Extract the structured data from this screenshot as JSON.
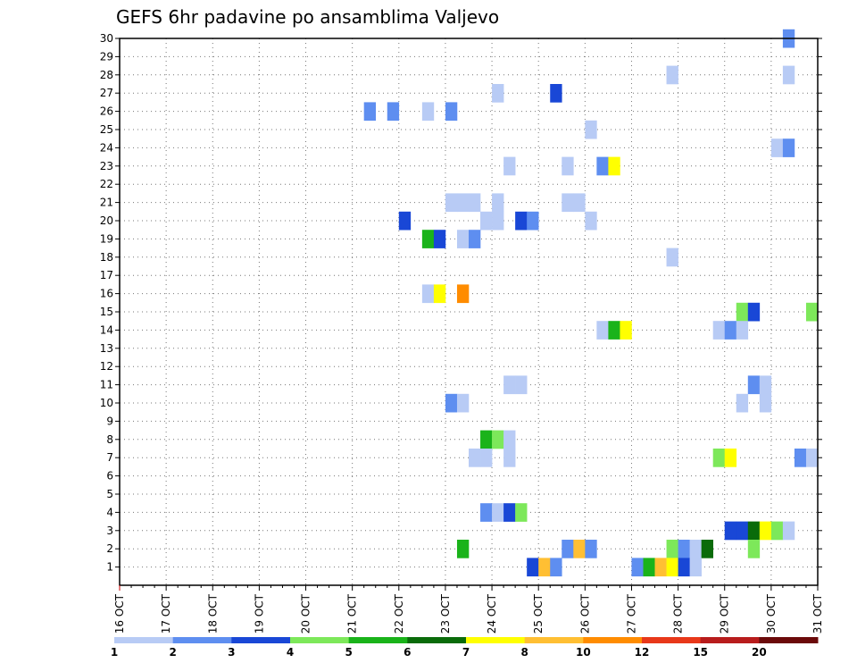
{
  "chart_data": {
    "type": "heatmap",
    "title": "GEFS 6hr padavine po ansamblima Valjevo",
    "xlabel": "",
    "ylabel": "",
    "x_ticks": [
      "16 OCT",
      "17 OCT",
      "18 OCT",
      "19 OCT",
      "20 OCT",
      "21 OCT",
      "22 OCT",
      "23 OCT",
      "24 OCT",
      "25 OCT",
      "26 OCT",
      "27 OCT",
      "28 OCT",
      "29 OCT",
      "30 OCT",
      "31 OCT"
    ],
    "x_range": [
      0,
      60
    ],
    "x_unit": "6-hour steps from 16 OCT 00Z",
    "y_range": [
      0,
      30
    ],
    "y_ticks": [
      1,
      2,
      3,
      4,
      5,
      6,
      7,
      8,
      9,
      10,
      11,
      12,
      13,
      14,
      15,
      16,
      17,
      18,
      19,
      20,
      21,
      22,
      23,
      24,
      25,
      26,
      27,
      28,
      29,
      30
    ],
    "grid": true,
    "legend": {
      "placement": "bottom",
      "labels": [
        "1",
        "2",
        "3",
        "4",
        "5",
        "6",
        "7",
        "8",
        "10",
        "12",
        "15",
        "20"
      ],
      "colors": [
        "#b8cbf5",
        "#5e8ef0",
        "#1947d6",
        "#7de85a",
        "#1ab31a",
        "#0a6b0a",
        "#ffff00",
        "#ffbf33",
        "#ff8c00",
        "#e8381a",
        "#b81c1c",
        "#6b0a0a"
      ]
    },
    "cells": [
      {
        "x": 57,
        "y": 30,
        "c": 2
      },
      {
        "x": 47,
        "y": 28,
        "c": 1
      },
      {
        "x": 57,
        "y": 28,
        "c": 1
      },
      {
        "x": 32,
        "y": 27,
        "c": 1
      },
      {
        "x": 37,
        "y": 27,
        "c": 3
      },
      {
        "x": 21,
        "y": 26,
        "c": 2
      },
      {
        "x": 23,
        "y": 26,
        "c": 2
      },
      {
        "x": 26,
        "y": 26,
        "c": 1
      },
      {
        "x": 28,
        "y": 26,
        "c": 2
      },
      {
        "x": 40,
        "y": 25,
        "c": 1
      },
      {
        "x": 56,
        "y": 24,
        "c": 1
      },
      {
        "x": 57,
        "y": 24,
        "c": 2
      },
      {
        "x": 33,
        "y": 23,
        "c": 1
      },
      {
        "x": 38,
        "y": 23,
        "c": 1
      },
      {
        "x": 41,
        "y": 23,
        "c": 2
      },
      {
        "x": 42,
        "y": 23,
        "c": 7
      },
      {
        "x": 28,
        "y": 21,
        "c": 1
      },
      {
        "x": 29,
        "y": 21,
        "c": 1
      },
      {
        "x": 30,
        "y": 21,
        "c": 1
      },
      {
        "x": 32,
        "y": 21,
        "c": 1
      },
      {
        "x": 38,
        "y": 21,
        "c": 1
      },
      {
        "x": 39,
        "y": 21,
        "c": 1
      },
      {
        "x": 24,
        "y": 20,
        "c": 3
      },
      {
        "x": 31,
        "y": 20,
        "c": 1
      },
      {
        "x": 32,
        "y": 20,
        "c": 1
      },
      {
        "x": 34,
        "y": 20,
        "c": 3
      },
      {
        "x": 35,
        "y": 20,
        "c": 2
      },
      {
        "x": 40,
        "y": 20,
        "c": 1
      },
      {
        "x": 26,
        "y": 19,
        "c": 5
      },
      {
        "x": 27,
        "y": 19,
        "c": 3
      },
      {
        "x": 29,
        "y": 19,
        "c": 1
      },
      {
        "x": 30,
        "y": 19,
        "c": 2
      },
      {
        "x": 47,
        "y": 18,
        "c": 1
      },
      {
        "x": 26,
        "y": 16,
        "c": 1
      },
      {
        "x": 27,
        "y": 16,
        "c": 7
      },
      {
        "x": 29,
        "y": 16,
        "c": 9
      },
      {
        "x": 53,
        "y": 15,
        "c": 4
      },
      {
        "x": 54,
        "y": 15,
        "c": 3
      },
      {
        "x": 59,
        "y": 15,
        "c": 4
      },
      {
        "x": 41,
        "y": 14,
        "c": 1
      },
      {
        "x": 42,
        "y": 14,
        "c": 5
      },
      {
        "x": 43,
        "y": 14,
        "c": 7
      },
      {
        "x": 51,
        "y": 14,
        "c": 1
      },
      {
        "x": 52,
        "y": 14,
        "c": 2
      },
      {
        "x": 53,
        "y": 14,
        "c": 1
      },
      {
        "x": 33,
        "y": 11,
        "c": 1
      },
      {
        "x": 34,
        "y": 11,
        "c": 1
      },
      {
        "x": 54,
        "y": 11,
        "c": 2
      },
      {
        "x": 55,
        "y": 11,
        "c": 1
      },
      {
        "x": 28,
        "y": 10,
        "c": 2
      },
      {
        "x": 29,
        "y": 10,
        "c": 1
      },
      {
        "x": 53,
        "y": 10,
        "c": 1
      },
      {
        "x": 55,
        "y": 10,
        "c": 1
      },
      {
        "x": 31,
        "y": 8,
        "c": 5
      },
      {
        "x": 32,
        "y": 8,
        "c": 4
      },
      {
        "x": 33,
        "y": 8,
        "c": 1
      },
      {
        "x": 30,
        "y": 7,
        "c": 1
      },
      {
        "x": 31,
        "y": 7,
        "c": 1
      },
      {
        "x": 33,
        "y": 7,
        "c": 1
      },
      {
        "x": 51,
        "y": 7,
        "c": 4
      },
      {
        "x": 52,
        "y": 7,
        "c": 7
      },
      {
        "x": 58,
        "y": 7,
        "c": 2
      },
      {
        "x": 59,
        "y": 7,
        "c": 1
      },
      {
        "x": 31,
        "y": 4,
        "c": 2
      },
      {
        "x": 32,
        "y": 4,
        "c": 1
      },
      {
        "x": 33,
        "y": 4,
        "c": 3
      },
      {
        "x": 34,
        "y": 4,
        "c": 4
      },
      {
        "x": 52,
        "y": 3,
        "c": 3
      },
      {
        "x": 53,
        "y": 3,
        "c": 3
      },
      {
        "x": 54,
        "y": 3,
        "c": 6
      },
      {
        "x": 55,
        "y": 3,
        "c": 7
      },
      {
        "x": 56,
        "y": 3,
        "c": 4
      },
      {
        "x": 57,
        "y": 3,
        "c": 1
      },
      {
        "x": 29,
        "y": 2,
        "c": 5
      },
      {
        "x": 38,
        "y": 2,
        "c": 2
      },
      {
        "x": 39,
        "y": 2,
        "c": 8
      },
      {
        "x": 40,
        "y": 2,
        "c": 2
      },
      {
        "x": 47,
        "y": 2,
        "c": 4
      },
      {
        "x": 48,
        "y": 2,
        "c": 2
      },
      {
        "x": 49,
        "y": 2,
        "c": 1
      },
      {
        "x": 50,
        "y": 2,
        "c": 6
      },
      {
        "x": 54,
        "y": 2,
        "c": 4
      },
      {
        "x": 35,
        "y": 1,
        "c": 3
      },
      {
        "x": 36,
        "y": 1,
        "c": 8
      },
      {
        "x": 37,
        "y": 1,
        "c": 2
      },
      {
        "x": 44,
        "y": 1,
        "c": 2
      },
      {
        "x": 45,
        "y": 1,
        "c": 5
      },
      {
        "x": 46,
        "y": 1,
        "c": 8
      },
      {
        "x": 47,
        "y": 1,
        "c": 7
      },
      {
        "x": 48,
        "y": 1,
        "c": 3
      },
      {
        "x": 49,
        "y": 1,
        "c": 1
      }
    ]
  }
}
